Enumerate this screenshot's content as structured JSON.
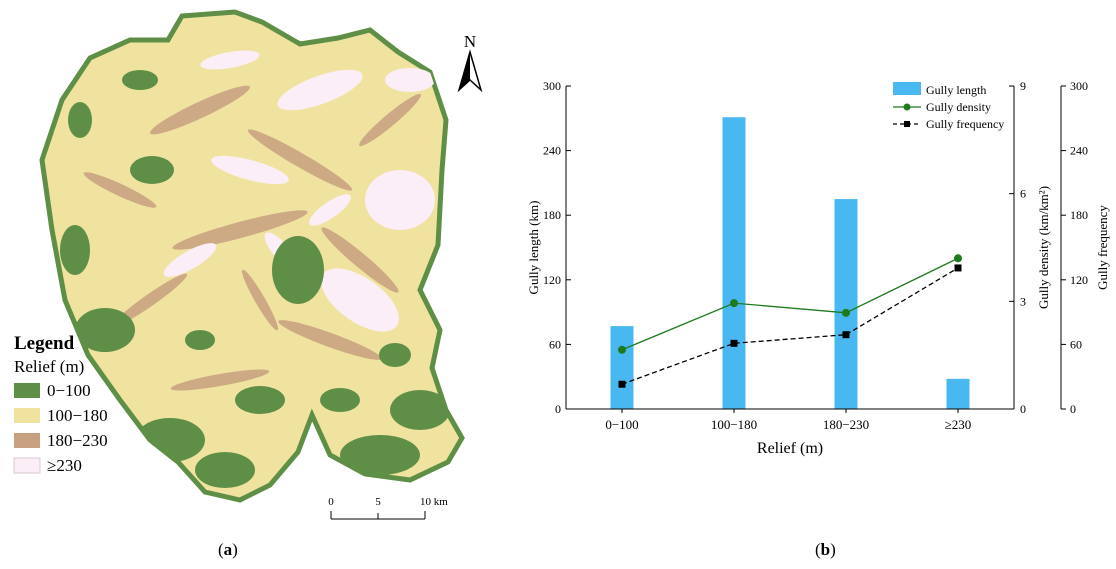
{
  "panel_a": {
    "label_prefix": "(",
    "label_letter": "a",
    "label_suffix": ")",
    "north_label": "N",
    "legend": {
      "title": "Legend",
      "subtitle": "Relief (m)",
      "items": [
        {
          "label": "0−100",
          "color": "#5f8f46"
        },
        {
          "label": "100−180",
          "color": "#f0e3a0"
        },
        {
          "label": "180−230",
          "color": "#c7a080"
        },
        {
          "label": "≥230",
          "color": "#fbeef6"
        }
      ]
    },
    "scale_bar": {
      "ticks": [
        "0",
        "5",
        "10 km"
      ]
    }
  },
  "panel_b": {
    "label_prefix": "(",
    "label_letter": "b",
    "label_suffix": ")"
  },
  "chart_data": {
    "type": "bar",
    "categories": [
      "0−100",
      "100−180",
      "180−230",
      "≥230"
    ],
    "xlabel": "Relief (m)",
    "series": [
      {
        "name": "Gully length",
        "type": "bar",
        "axis": "left",
        "color": "#4ab8f0",
        "values": [
          77,
          271,
          195,
          28
        ]
      },
      {
        "name": "Gully density",
        "type": "line",
        "axis": "right1",
        "color": "#1e7a1e",
        "values": [
          1.65,
          2.95,
          2.68,
          4.2
        ]
      },
      {
        "name": "Gully frequency",
        "type": "line",
        "axis": "right2",
        "color": "#000000",
        "values": [
          23,
          61,
          69,
          131
        ]
      }
    ],
    "axes": {
      "left": {
        "label": "Gully length (km)",
        "min": 0,
        "max": 300,
        "ticks": [
          "0",
          "60",
          "120",
          "180",
          "240",
          "300"
        ]
      },
      "right1": {
        "label": "Gully density (km/km²)",
        "min": 0,
        "max": 9,
        "ticks": [
          "0",
          "3",
          "6",
          "9"
        ]
      },
      "right2": {
        "label": "Gully frequency",
        "min": 0,
        "max": 300,
        "ticks": [
          "0",
          "60",
          "120",
          "180",
          "240",
          "300"
        ]
      }
    },
    "legend_position": "top-right",
    "grid": false
  }
}
